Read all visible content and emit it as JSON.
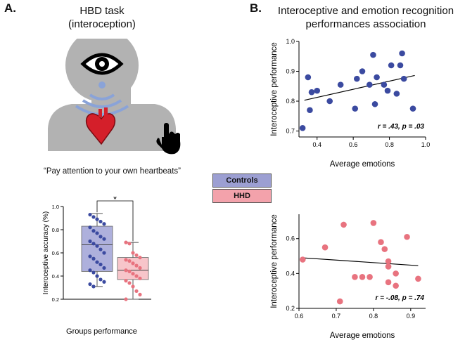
{
  "panel_a": {
    "letter": "A.",
    "task_title_line1": "HBD task",
    "task_title_line2": "(interoception)",
    "instruction": "“Pay attention to your own heartbeats”",
    "icons": [
      "eye-icon",
      "heart-icon",
      "hand-pointer-icon"
    ]
  },
  "panel_b": {
    "letter": "B.",
    "title_line1": "Interoceptive and emotion recognition",
    "title_line2": "performances association"
  },
  "legend": {
    "controls_label": "Controls",
    "hhd_label": "HHD",
    "controls_color": "#9c9fd2",
    "hhd_color": "#f3a2ab"
  },
  "chart_data": [
    {
      "type": "box",
      "ylabel": "Interoceptive accuracy (%)",
      "xlabel": "Groups performance",
      "ylim": [
        0.2,
        1.0
      ],
      "yticks": [
        "0.2",
        "0.4",
        "0.6",
        "0.8",
        "1.0"
      ],
      "significance": "*",
      "series": [
        {
          "name": "Controls",
          "color": "#3b4aa0",
          "box_color": "#aeb0dc",
          "min": 0.31,
          "q1": 0.44,
          "median": 0.67,
          "q3": 0.83,
          "max": 0.94,
          "points": [
            0.93,
            0.91,
            0.89,
            0.87,
            0.85,
            0.82,
            0.79,
            0.77,
            0.74,
            0.72,
            0.7,
            0.68,
            0.66,
            0.63,
            0.6,
            0.57,
            0.55,
            0.52,
            0.5,
            0.47,
            0.45,
            0.43,
            0.4,
            0.37,
            0.35,
            0.33,
            0.31
          ]
        },
        {
          "name": "HHD",
          "color": "#e8737f",
          "box_color": "#f7c5ca",
          "min": 0.2,
          "q1": 0.37,
          "median": 0.45,
          "q3": 0.56,
          "max": 0.69,
          "points": [
            0.69,
            0.68,
            0.6,
            0.58,
            0.56,
            0.54,
            0.53,
            0.51,
            0.49,
            0.47,
            0.45,
            0.44,
            0.42,
            0.4,
            0.38,
            0.36,
            0.34,
            0.31,
            0.27,
            0.24,
            0.2
          ]
        }
      ]
    },
    {
      "type": "scatter",
      "xlabel": "Average emotions",
      "ylabel": "Interoceptive performance",
      "xlim": [
        0.3,
        1.0
      ],
      "ylim": [
        0.68,
        1.0
      ],
      "xticks": [
        "0.4",
        "0.6",
        "0.8",
        "1.0"
      ],
      "yticks": [
        "0.7",
        "0.8",
        "0.9",
        "1.0"
      ],
      "color": "#3b4aa0",
      "annotation": "r = .43, p = .03",
      "trend": [
        [
          0.33,
          0.803
        ],
        [
          0.94,
          0.886
        ]
      ],
      "points": [
        [
          0.32,
          0.71
        ],
        [
          0.35,
          0.88
        ],
        [
          0.36,
          0.77
        ],
        [
          0.37,
          0.83
        ],
        [
          0.4,
          0.835
        ],
        [
          0.47,
          0.8
        ],
        [
          0.53,
          0.855
        ],
        [
          0.61,
          0.775
        ],
        [
          0.62,
          0.875
        ],
        [
          0.65,
          0.9
        ],
        [
          0.69,
          0.855
        ],
        [
          0.71,
          0.955
        ],
        [
          0.72,
          0.79
        ],
        [
          0.73,
          0.88
        ],
        [
          0.77,
          0.855
        ],
        [
          0.79,
          0.835
        ],
        [
          0.81,
          0.92
        ],
        [
          0.84,
          0.825
        ],
        [
          0.86,
          0.92
        ],
        [
          0.87,
          0.96
        ],
        [
          0.88,
          0.875
        ],
        [
          0.93,
          0.775
        ]
      ]
    },
    {
      "type": "scatter",
      "xlabel": "Average emotions",
      "ylabel": "Interoceptive performance",
      "xlim": [
        0.6,
        0.94
      ],
      "ylim": [
        0.2,
        0.74
      ],
      "xticks": [
        "0.6",
        "0.7",
        "0.8",
        "0.9"
      ],
      "yticks": [
        "0.2",
        "0.4",
        "0.6"
      ],
      "color": "#e8737f",
      "annotation": "r = -.08, p = .74",
      "trend": [
        [
          0.61,
          0.49
        ],
        [
          0.92,
          0.445
        ]
      ],
      "points": [
        [
          0.61,
          0.48
        ],
        [
          0.67,
          0.55
        ],
        [
          0.71,
          0.24
        ],
        [
          0.72,
          0.68
        ],
        [
          0.75,
          0.38
        ],
        [
          0.77,
          0.38
        ],
        [
          0.79,
          0.38
        ],
        [
          0.8,
          0.69
        ],
        [
          0.82,
          0.58
        ],
        [
          0.83,
          0.54
        ],
        [
          0.84,
          0.44
        ],
        [
          0.84,
          0.47
        ],
        [
          0.84,
          0.35
        ],
        [
          0.86,
          0.4
        ],
        [
          0.86,
          0.33
        ],
        [
          0.89,
          0.61
        ],
        [
          0.92,
          0.37
        ]
      ]
    }
  ]
}
